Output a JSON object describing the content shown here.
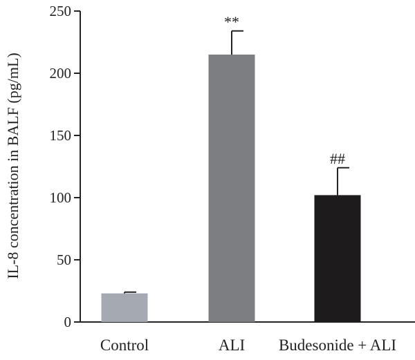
{
  "chart_data": {
    "type": "bar",
    "title": "",
    "xlabel": "",
    "ylabel": "IL-8 concentration in BALF (pg/mL)",
    "ylim": [
      0,
      250
    ],
    "yticks": [
      0,
      50,
      100,
      150,
      200,
      250
    ],
    "categories": [
      "Control",
      "ALI",
      "Budesonide + ALI"
    ],
    "values": [
      23,
      215,
      102
    ],
    "errors": [
      1,
      19,
      22
    ],
    "annotations": [
      "",
      "**",
      "##"
    ],
    "colors": [
      "#a4a9b2",
      "#7c7e82",
      "#1d1b1c"
    ],
    "grid": false,
    "legend": "none"
  }
}
